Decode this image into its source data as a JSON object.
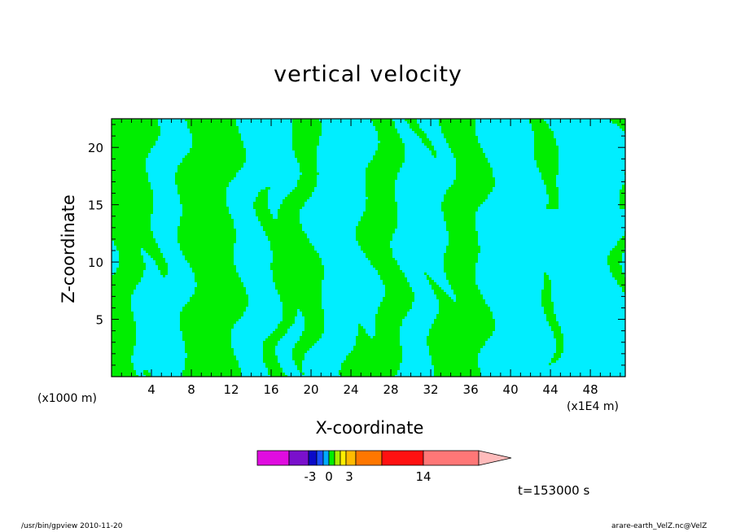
{
  "chart_data": {
    "type": "heatmap",
    "title": "vertical velocity",
    "xlabel": "X-coordinate",
    "ylabel": "Z-coordinate",
    "x_unit_label": "(x1000 m)",
    "x_scale_label": "(x1E4 m)",
    "time_label": "t=153000 s",
    "xlim": [
      0,
      51.5
    ],
    "ylim": [
      0,
      22.5
    ],
    "x_ticks": [
      4,
      8,
      12,
      16,
      20,
      24,
      28,
      32,
      36,
      40,
      44,
      48
    ],
    "y_ticks": [
      5,
      10,
      15,
      20
    ],
    "x_tick_labels": [
      "4",
      "8",
      "12",
      "16",
      "20",
      "24",
      "28",
      "32",
      "36",
      "40",
      "44",
      "48"
    ],
    "y_tick_labels": [
      "5",
      "10",
      "15",
      "20"
    ],
    "field_colors": {
      "negative": "#00eeff",
      "positive": "#00ee00"
    },
    "colorbar": {
      "colors": [
        "#e00ce0",
        "#7a10cc",
        "#0a0ac8",
        "#1a50ff",
        "#00aaff",
        "#00ee00",
        "#aaee00",
        "#ffee00",
        "#ffbb00",
        "#ff7700",
        "#ff1111",
        "#ff7777",
        "#ffbbbb"
      ],
      "labels": [
        "-3",
        "0",
        "3",
        "14"
      ]
    },
    "footer_left": "/usr/bin/gpview   2010-11-20",
    "footer_right": "arare-earth_VelZ.nc@VelZ"
  }
}
